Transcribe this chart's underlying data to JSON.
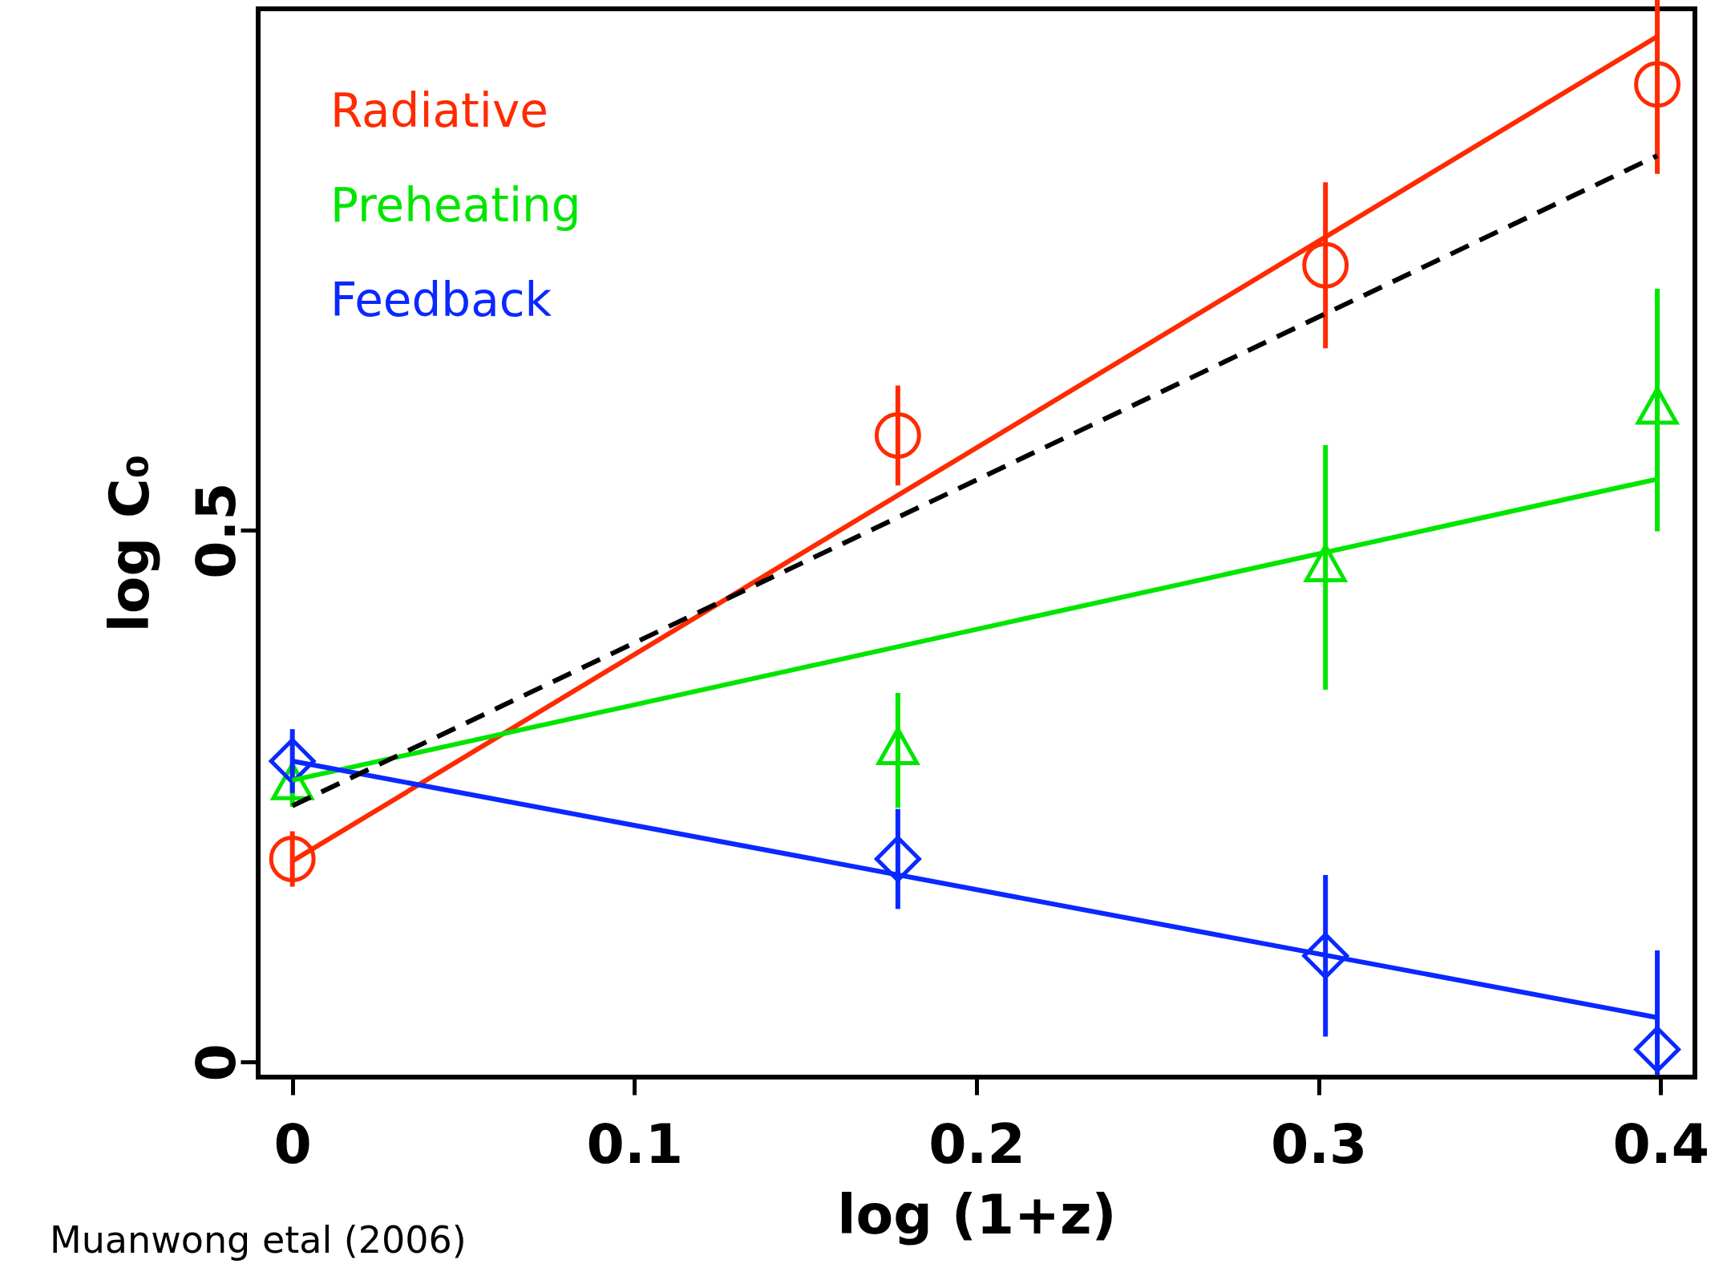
{
  "chart_data": {
    "type": "scatter",
    "xlabel": "log (1+z)",
    "ylabel": "log C₀",
    "xlim": [
      -0.01,
      0.41
    ],
    "ylim": [
      -0.014,
      0.99
    ],
    "xticks": [
      0,
      0.1,
      0.2,
      0.3,
      0.4
    ],
    "yticks": [
      0,
      0.5
    ],
    "grid": false,
    "legend": "top left",
    "annotations": [
      "Muanwong etal (2006)"
    ],
    "series": [
      {
        "name": "Radiative",
        "type": "scatter",
        "marker": "circle",
        "color": "#ff2a00",
        "x": [
          0,
          0.177,
          0.302,
          0.399
        ],
        "values": [
          0.191,
          0.589,
          0.749,
          0.919
        ],
        "errors": [
          0.026,
          0.047,
          0.078,
          0.084
        ]
      },
      {
        "name": "Preheating",
        "type": "scatter",
        "marker": "triangle",
        "color": "#00e600",
        "x": [
          0,
          0.177,
          0.302,
          0.399
        ],
        "values": [
          0.26,
          0.293,
          0.465,
          0.613
        ],
        "errors": [
          0.02,
          0.054,
          0.115,
          0.114
        ]
      },
      {
        "name": "Feedback",
        "type": "scatter",
        "marker": "diamond",
        "color": "#0a28ff",
        "x": [
          0,
          0.177,
          0.302,
          0.399
        ],
        "values": [
          0.283,
          0.191,
          0.1,
          0.012
        ],
        "errors": [
          0.03,
          0.047,
          0.076,
          [
            -0.012,
            0.105
          ]
        ]
      },
      {
        "type": "line",
        "color": "#ff2a00",
        "line_style": "solid",
        "x": [
          0,
          0.399
        ],
        "values": [
          0.189,
          0.964
        ]
      },
      {
        "type": "line",
        "color": "#00e600",
        "line_style": "solid",
        "x": [
          0,
          0.399
        ],
        "values": [
          0.265,
          0.548
        ]
      },
      {
        "type": "line",
        "color": "#0a28ff",
        "line_style": "solid",
        "x": [
          0,
          0.399
        ],
        "values": [
          0.283,
          0.042
        ]
      },
      {
        "type": "line",
        "color": "#000000",
        "line_style": "dashed",
        "x": [
          0,
          0.399
        ],
        "values": [
          0.241,
          0.852
        ]
      }
    ]
  }
}
